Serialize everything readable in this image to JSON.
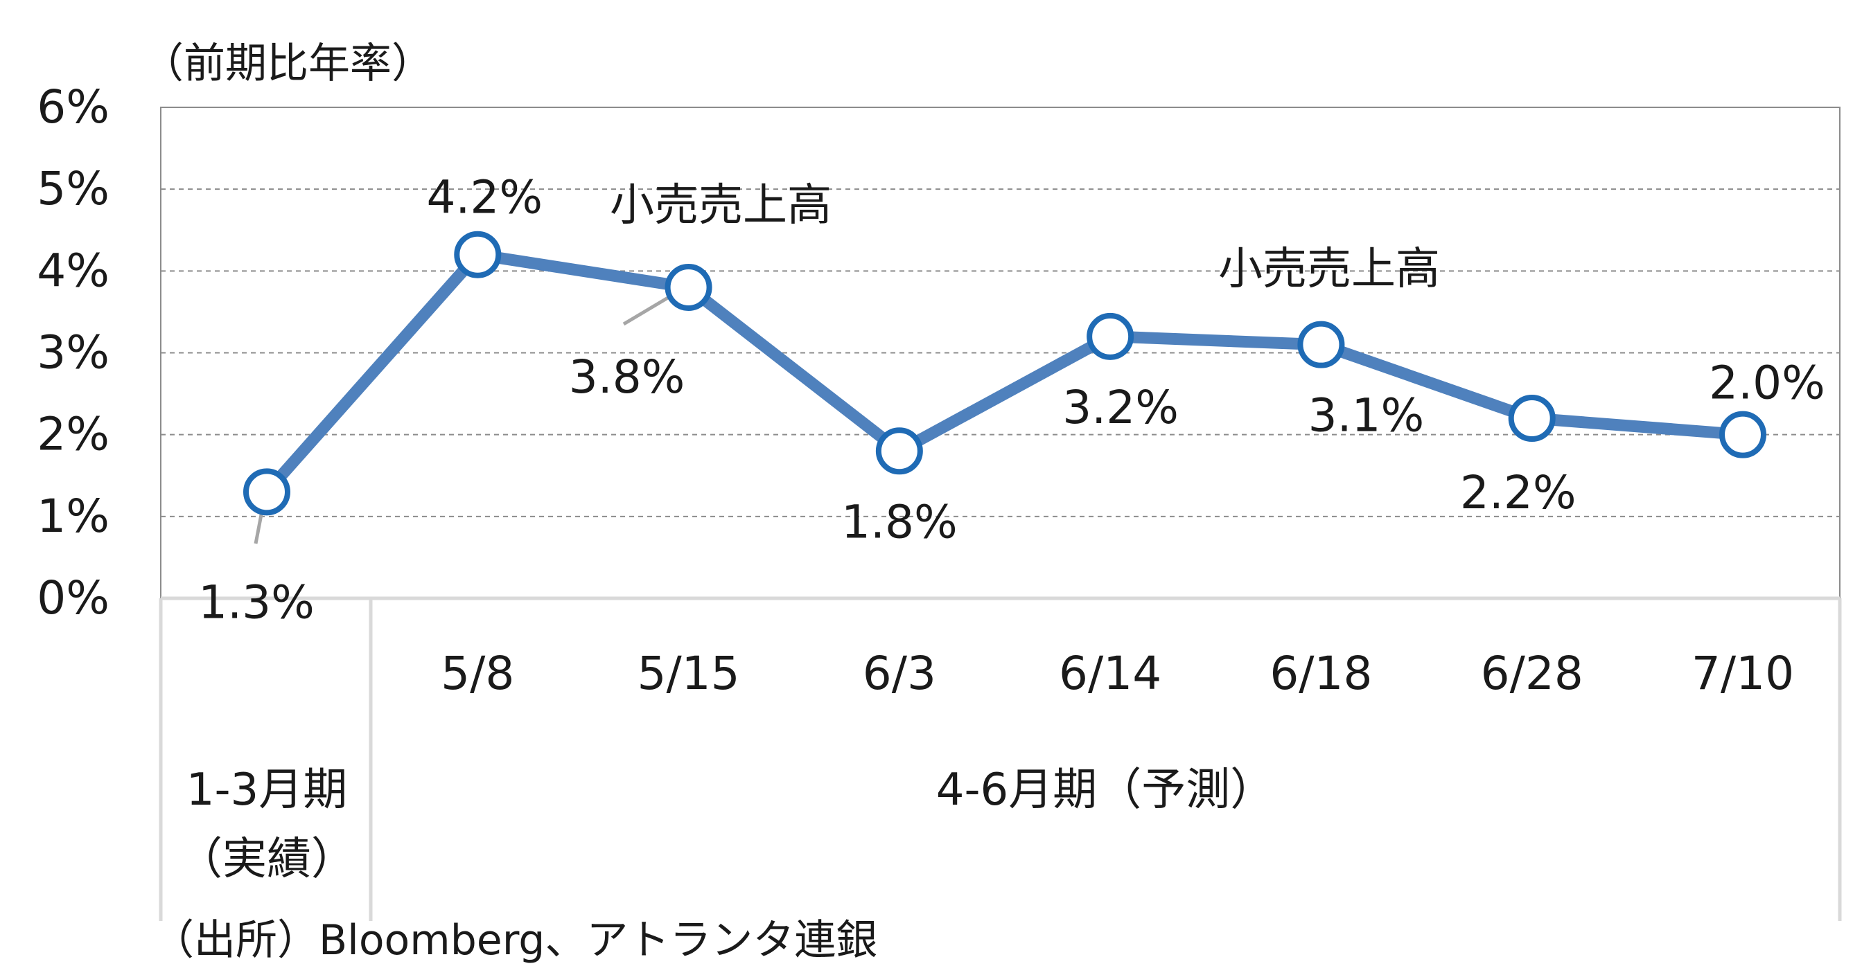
{
  "chart_data": {
    "type": "line",
    "ylabel": "（前期比年率）",
    "ylim": [
      0,
      6
    ],
    "yticks": [
      "0%",
      "1%",
      "2%",
      "3%",
      "4%",
      "5%",
      "6%"
    ],
    "categories": [
      "",
      "5/8",
      "5/15",
      "6/3",
      "6/14",
      "6/18",
      "6/28",
      "7/10"
    ],
    "series": [
      {
        "values": [
          1.3,
          4.2,
          3.8,
          1.8,
          3.2,
          3.1,
          2.2,
          2.0
        ]
      }
    ],
    "data_labels": [
      "1.3%",
      "4.2%",
      "3.8%",
      "1.8%",
      "3.2%",
      "3.1%",
      "2.2%",
      "2.0%"
    ],
    "annotations": [
      "小売売上高",
      "小売売上高"
    ],
    "grid": true,
    "line_color": "#4f81bd",
    "marker_edge_color": "#1f6bb5",
    "grid_color": "#8c8c8c",
    "period_groups": [
      {
        "label_line1": "1-3月期",
        "label_line2": "（実績）"
      },
      {
        "label_line1": "4-6月期（予測）"
      }
    ]
  },
  "source": "（出所）Bloomberg、アトランタ連銀"
}
